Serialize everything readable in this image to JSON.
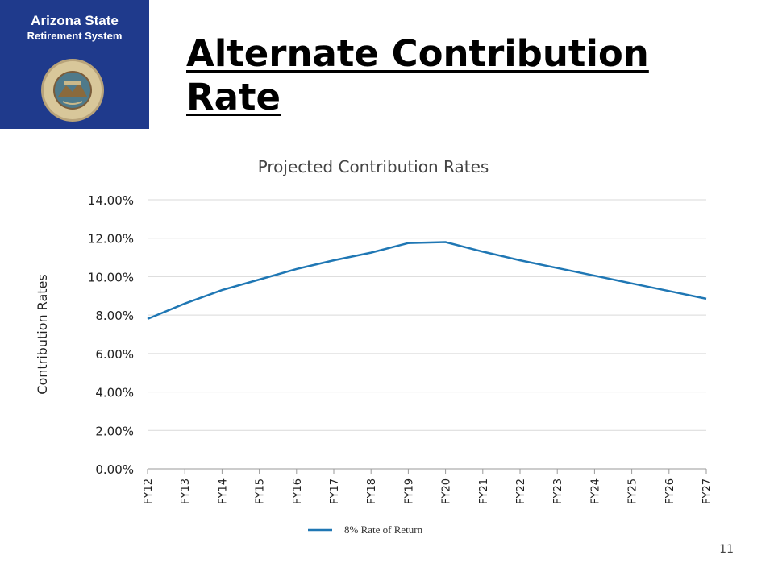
{
  "header": {
    "org_line1": "Arizona State",
    "org_line2": "Retirement System",
    "seal_text": "ARIZONA STATE RETIREMENT SYSTEM · 1953"
  },
  "slide": {
    "title": "Alternate Contribution Rate",
    "page_number": "11"
  },
  "colors": {
    "brand_blue": "#1f3a8c",
    "line_blue": "#1f77b4"
  },
  "chart_data": {
    "type": "line",
    "title": "Projected Contribution Rates",
    "ylabel": "Contribution Rates",
    "xlabel": "",
    "categories": [
      "FY12",
      "FY13",
      "FY14",
      "FY15",
      "FY16",
      "FY17",
      "FY18",
      "FY19",
      "FY20",
      "FY21",
      "FY22",
      "FY23",
      "FY24",
      "FY25",
      "FY26",
      "FY27"
    ],
    "series": [
      {
        "name": "8% Rate of Return",
        "values": [
          7.8,
          8.6,
          9.3,
          9.85,
          10.4,
          10.85,
          11.25,
          11.75,
          11.8,
          11.3,
          10.85,
          10.45,
          10.05,
          9.65,
          9.25,
          8.85
        ]
      }
    ],
    "ylim": [
      0,
      14
    ],
    "yticks": [
      0,
      2,
      4,
      6,
      8,
      10,
      12,
      14
    ],
    "ytick_labels": [
      "0.00%",
      "2.00%",
      "4.00%",
      "6.00%",
      "8.00%",
      "10.00%",
      "12.00%",
      "14.00%"
    ],
    "grid": true,
    "legend_position": "bottom"
  }
}
